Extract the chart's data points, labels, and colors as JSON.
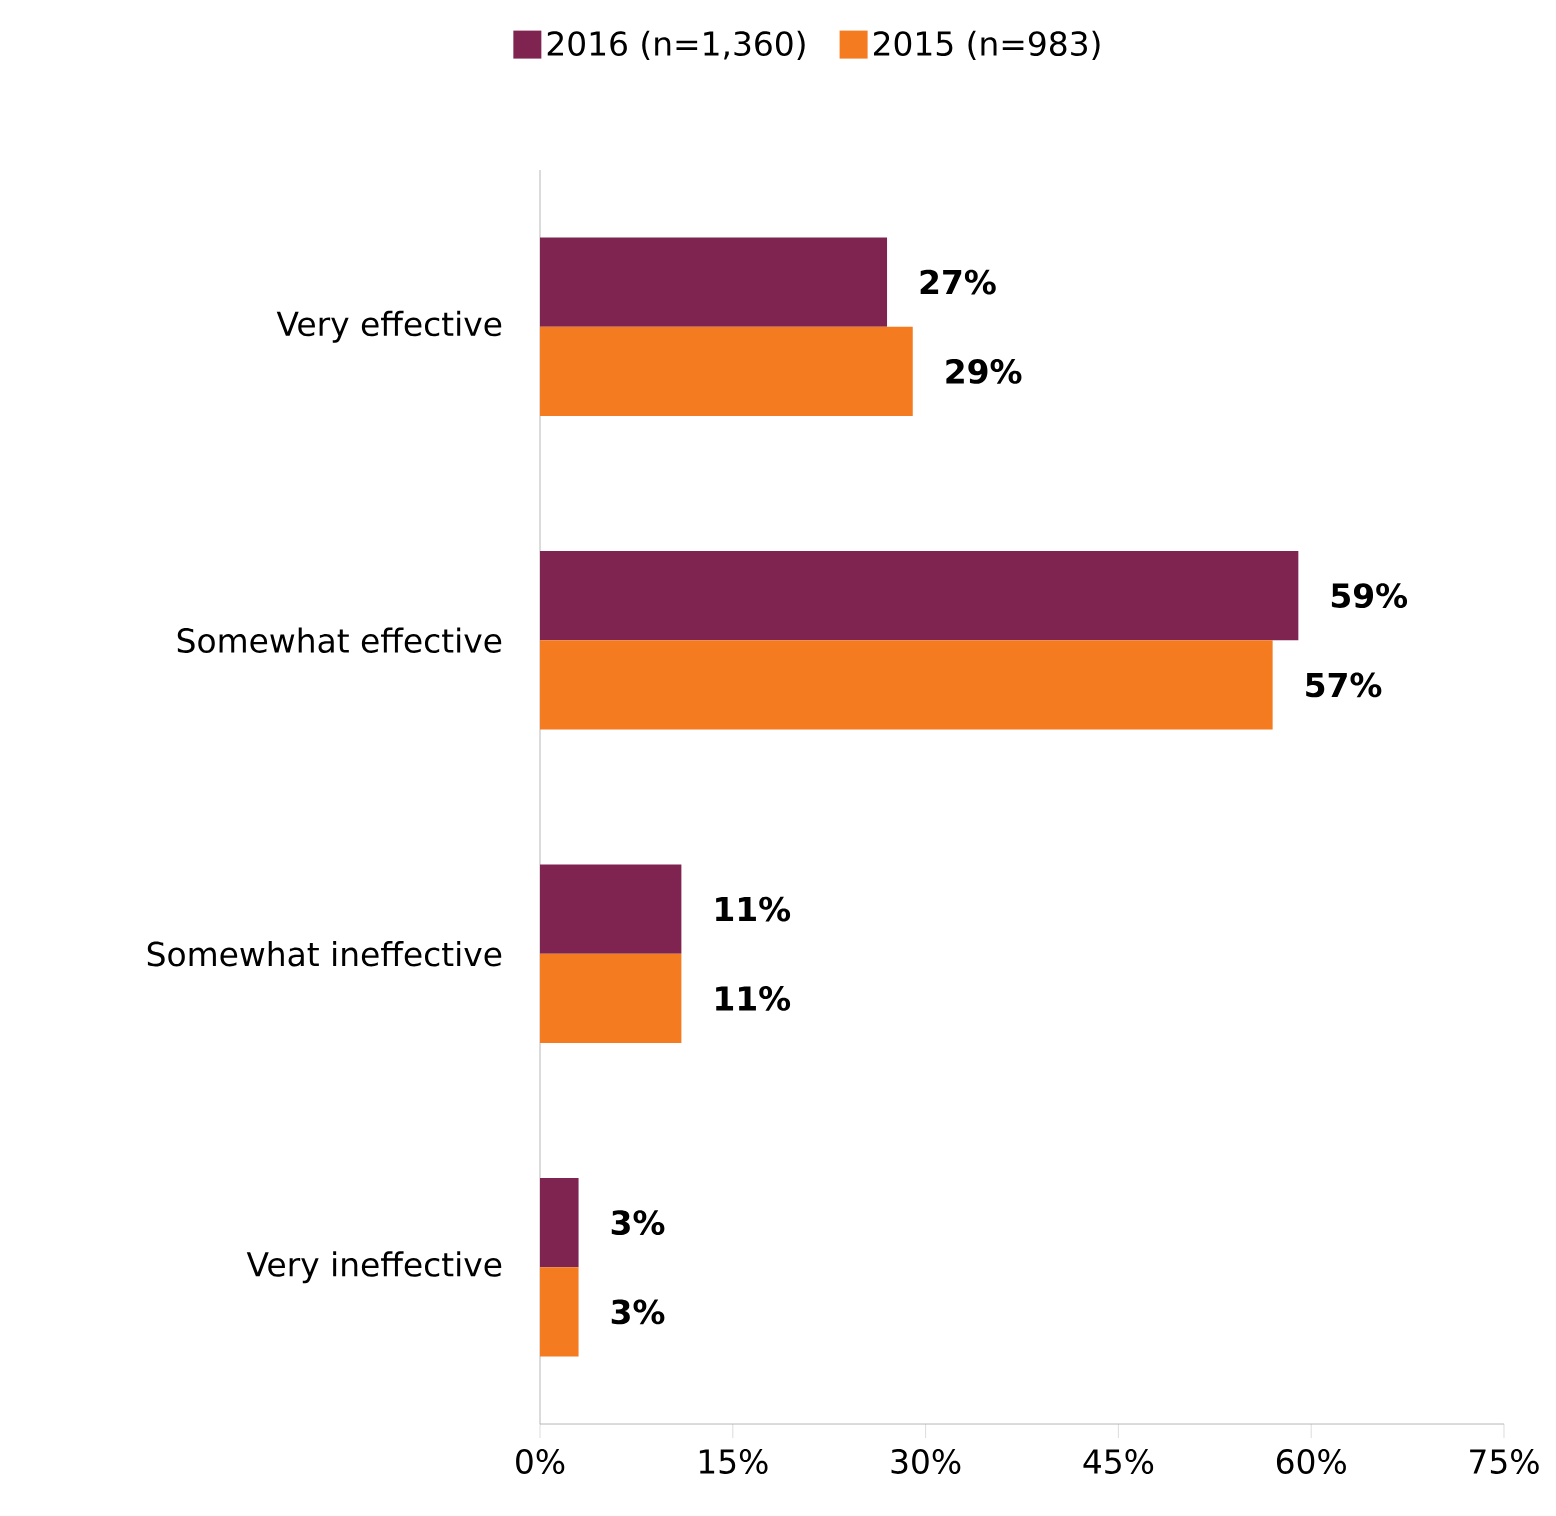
{
  "chart_data": {
    "type": "bar",
    "orientation": "horizontal",
    "legend": "top",
    "categories": [
      "Very effective",
      "Somewhat effective",
      "Somewhat ineffective",
      "Very ineffective"
    ],
    "series": [
      {
        "name": "2016 (n=1,360)",
        "color": "#7f2451",
        "values": [
          27,
          59,
          11,
          3
        ],
        "value_labels": [
          "27%",
          "59%",
          "11%",
          "3%"
        ]
      },
      {
        "name": "2015 (n=983)",
        "color": "#f47b20",
        "values": [
          29,
          57,
          11,
          3
        ],
        "value_labels": [
          "29%",
          "57%",
          "11%",
          "3%"
        ]
      }
    ],
    "xlim": [
      0,
      75
    ],
    "xticks": [
      {
        "value": 0,
        "label": "0%"
      },
      {
        "value": 15,
        "label": "15%"
      },
      {
        "value": 30,
        "label": "30%"
      },
      {
        "value": 45,
        "label": "45%"
      },
      {
        "value": 60,
        "label": "60%"
      },
      {
        "value": 75,
        "label": "75%"
      }
    ]
  }
}
